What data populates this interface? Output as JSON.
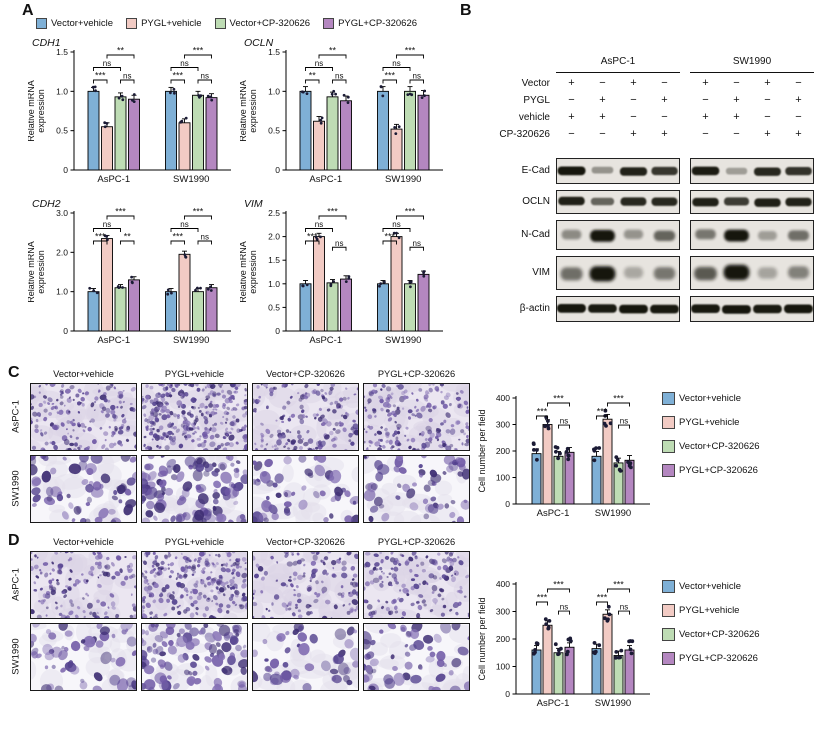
{
  "colors": {
    "series": [
      "#7fb0d6",
      "#f2cbc4",
      "#bedcb4",
      "#b487c0"
    ],
    "dot": "#1b1b35",
    "stain": "#5d4a96"
  },
  "legend_items": [
    "Vector+vehicle",
    "PYGL+vehicle",
    "Vector+CP-320626",
    "PYGL+CP-320626"
  ],
  "panelA": {
    "label": "A"
  },
  "panelB": {
    "label": "B",
    "cell_lines": [
      "AsPC-1",
      "SW1990"
    ],
    "condition_rows": [
      {
        "name": "Vector",
        "aspc1": [
          "+",
          "−",
          "+",
          "−"
        ],
        "sw1990": [
          "+",
          "−",
          "+",
          "−"
        ]
      },
      {
        "name": "PYGL",
        "aspc1": [
          "−",
          "+",
          "−",
          "+"
        ],
        "sw1990": [
          "−",
          "+",
          "−",
          "+"
        ]
      },
      {
        "name": "vehicle",
        "aspc1": [
          "+",
          "+",
          "−",
          "−"
        ],
        "sw1990": [
          "+",
          "+",
          "−",
          "−"
        ]
      },
      {
        "name": "CP-320626",
        "aspc1": [
          "−",
          "−",
          "+",
          "+"
        ],
        "sw1990": [
          "−",
          "−",
          "+",
          "+"
        ]
      }
    ],
    "blots": [
      {
        "name": "E-Cad",
        "aspc1": [
          0.95,
          0.3,
          0.88,
          0.78
        ],
        "sw1990": [
          0.92,
          0.25,
          0.85,
          0.8
        ]
      },
      {
        "name": "OCLN",
        "aspc1": [
          0.9,
          0.55,
          0.85,
          0.85
        ],
        "sw1990": [
          0.9,
          0.75,
          0.9,
          0.88
        ]
      },
      {
        "name": "N-Cad",
        "aspc1": [
          0.35,
          0.95,
          0.3,
          0.55
        ],
        "sw1990": [
          0.45,
          0.95,
          0.25,
          0.5
        ]
      },
      {
        "name": "VIM",
        "aspc1": [
          0.5,
          0.95,
          0.2,
          0.45
        ],
        "sw1990": [
          0.6,
          0.95,
          0.22,
          0.4
        ]
      },
      {
        "name": "β-actin",
        "aspc1": [
          0.95,
          0.93,
          0.95,
          0.94
        ],
        "sw1990": [
          0.94,
          0.95,
          0.93,
          0.95
        ]
      }
    ]
  },
  "panelC": {
    "label": "C",
    "col_headers": [
      "Vector+vehicle",
      "PYGL+vehicle",
      "Vector+CP-320626",
      "PYGL+CP-320626"
    ],
    "row_labels": [
      "AsPC-1",
      "SW1990"
    ],
    "image_density": [
      [
        170,
        300,
        160,
        175
      ],
      [
        62,
        110,
        52,
        58
      ]
    ]
  },
  "panelD": {
    "label": "D",
    "col_headers": [
      "Vector+vehicle",
      "PYGL+vehicle",
      "Vector+CP-320626",
      "PYGL+CP-320626"
    ],
    "row_labels": [
      "AsPC-1",
      "SW1990"
    ],
    "image_density": [
      [
        140,
        240,
        130,
        150
      ],
      [
        55,
        100,
        46,
        55
      ]
    ]
  },
  "chart_data": [
    {
      "id": "CDH1",
      "type": "bar",
      "style": "small",
      "seed": 3,
      "title": "CDH1",
      "ylabel": "Relative mRNA expression",
      "ylim": [
        0,
        1.5
      ],
      "yticks": [
        0,
        0.5,
        1,
        1.5
      ],
      "err": 0.05,
      "categories": [
        "AsPC-1",
        "SW1990"
      ],
      "series": [
        {
          "name": "Vector+vehicle",
          "values": [
            1.0,
            1.0
          ]
        },
        {
          "name": "PYGL+vehicle",
          "values": [
            0.55,
            0.6
          ]
        },
        {
          "name": "Vector+CP-320626",
          "values": [
            0.93,
            0.95
          ]
        },
        {
          "name": "PYGL+CP-320626",
          "values": [
            0.9,
            0.92
          ]
        }
      ],
      "brackets": [
        {
          "group": 0,
          "from": 0,
          "to": 1,
          "label": "***",
          "level": 2
        },
        {
          "group": 0,
          "from": 0,
          "to": 2,
          "label": "ns",
          "level": 1
        },
        {
          "group": 0,
          "from": 1,
          "to": 3,
          "label": "**",
          "level": 0
        },
        {
          "group": 0,
          "from": 2,
          "to": 3,
          "label": "ns",
          "level": 2
        },
        {
          "group": 1,
          "from": 0,
          "to": 1,
          "label": "***",
          "level": 2
        },
        {
          "group": 1,
          "from": 0,
          "to": 2,
          "label": "ns",
          "level": 1
        },
        {
          "group": 1,
          "from": 1,
          "to": 3,
          "label": "***",
          "level": 0
        },
        {
          "group": 1,
          "from": 2,
          "to": 3,
          "label": "ns",
          "level": 2
        }
      ]
    },
    {
      "id": "OCLN",
      "type": "bar",
      "style": "small",
      "seed": 5,
      "title": "OCLN",
      "ylabel": "Relative mRNA expression",
      "ylim": [
        0,
        1.5
      ],
      "yticks": [
        0,
        0.5,
        1,
        1.5
      ],
      "err": 0.06,
      "categories": [
        "AsPC-1",
        "SW1990"
      ],
      "series": [
        {
          "name": "Vector+vehicle",
          "values": [
            1.0,
            1.0
          ]
        },
        {
          "name": "PYGL+vehicle",
          "values": [
            0.62,
            0.52
          ]
        },
        {
          "name": "Vector+CP-320626",
          "values": [
            0.93,
            1.0
          ]
        },
        {
          "name": "PYGL+CP-320626",
          "values": [
            0.88,
            0.95
          ]
        }
      ],
      "brackets": [
        {
          "group": 0,
          "from": 0,
          "to": 1,
          "label": "**",
          "level": 2
        },
        {
          "group": 0,
          "from": 0,
          "to": 2,
          "label": "ns",
          "level": 1
        },
        {
          "group": 0,
          "from": 1,
          "to": 3,
          "label": "**",
          "level": 0
        },
        {
          "group": 0,
          "from": 2,
          "to": 3,
          "label": "ns",
          "level": 2
        },
        {
          "group": 1,
          "from": 0,
          "to": 1,
          "label": "***",
          "level": 2
        },
        {
          "group": 1,
          "from": 0,
          "to": 2,
          "label": "ns",
          "level": 1
        },
        {
          "group": 1,
          "from": 1,
          "to": 3,
          "label": "***",
          "level": 0
        },
        {
          "group": 1,
          "from": 2,
          "to": 3,
          "label": "ns",
          "level": 2
        }
      ]
    },
    {
      "id": "CDH2",
      "type": "bar",
      "style": "small",
      "seed": 7,
      "title": "CDH2",
      "ylabel": "Relative mRNA expression",
      "ylim": [
        0,
        3
      ],
      "yticks": [
        0,
        1,
        2,
        3
      ],
      "err": 0.08,
      "categories": [
        "AsPC-1",
        "SW1990"
      ],
      "series": [
        {
          "name": "Vector+vehicle",
          "values": [
            1.0,
            1.0
          ]
        },
        {
          "name": "PYGL+vehicle",
          "values": [
            2.35,
            1.95
          ]
        },
        {
          "name": "Vector+CP-320626",
          "values": [
            1.1,
            1.0
          ]
        },
        {
          "name": "PYGL+CP-320626",
          "values": [
            1.3,
            1.1
          ]
        }
      ],
      "brackets": [
        {
          "group": 0,
          "from": 0,
          "to": 1,
          "label": "***",
          "level": 2
        },
        {
          "group": 0,
          "from": 0,
          "to": 2,
          "label": "ns",
          "level": 1
        },
        {
          "group": 0,
          "from": 1,
          "to": 3,
          "label": "***",
          "level": 0
        },
        {
          "group": 0,
          "from": 2,
          "to": 3,
          "label": "**",
          "level": 2
        },
        {
          "group": 1,
          "from": 0,
          "to": 1,
          "label": "***",
          "level": 2
        },
        {
          "group": 1,
          "from": 0,
          "to": 2,
          "label": "ns",
          "level": 1
        },
        {
          "group": 1,
          "from": 1,
          "to": 3,
          "label": "***",
          "level": 0
        },
        {
          "group": 1,
          "from": 2,
          "to": 3,
          "label": "ns",
          "level": 2
        }
      ]
    },
    {
      "id": "VIM",
      "type": "bar",
      "style": "small",
      "seed": 9,
      "title": "VIM",
      "ylabel": "Relative mRNA expression",
      "ylim": [
        0,
        2.5
      ],
      "yticks": [
        0,
        0.5,
        1,
        1.5,
        2,
        2.5
      ],
      "err": 0.07,
      "categories": [
        "AsPC-1",
        "SW1990"
      ],
      "series": [
        {
          "name": "Vector+vehicle",
          "values": [
            1.0,
            1.0
          ]
        },
        {
          "name": "PYGL+vehicle",
          "values": [
            2.0,
            2.0
          ]
        },
        {
          "name": "Vector+CP-320626",
          "values": [
            1.02,
            1.0
          ]
        },
        {
          "name": "PYGL+CP-320626",
          "values": [
            1.1,
            1.2
          ]
        }
      ],
      "brackets": [
        {
          "group": 0,
          "from": 0,
          "to": 1,
          "label": "***",
          "level": 2
        },
        {
          "group": 0,
          "from": 0,
          "to": 2,
          "label": "ns",
          "level": 1
        },
        {
          "group": 0,
          "from": 1,
          "to": 3,
          "label": "***",
          "level": 0
        },
        {
          "group": 0,
          "from": 2,
          "to": 3,
          "label": "ns",
          "level": 2.5
        },
        {
          "group": 1,
          "from": 0,
          "to": 1,
          "label": "***",
          "level": 2
        },
        {
          "group": 1,
          "from": 0,
          "to": 2,
          "label": "ns",
          "level": 1
        },
        {
          "group": 1,
          "from": 1,
          "to": 3,
          "label": "***",
          "level": 0
        },
        {
          "group": 1,
          "from": 2,
          "to": 3,
          "label": "ns",
          "level": 2.5
        }
      ]
    },
    {
      "id": "migration",
      "type": "bar",
      "style": "large",
      "seed": 13,
      "title": "",
      "ylabel": "Cell number per field",
      "ylim": [
        0,
        400
      ],
      "yticks": [
        0,
        100,
        200,
        300,
        400
      ],
      "err": 18,
      "categories": [
        "AsPC-1",
        "SW1990"
      ],
      "series": [
        {
          "name": "Vector+vehicle",
          "values": [
            190,
            180
          ]
        },
        {
          "name": "PYGL+vehicle",
          "values": [
            300,
            320
          ]
        },
        {
          "name": "Vector+CP-320626",
          "values": [
            180,
            155
          ]
        },
        {
          "name": "PYGL+CP-320626",
          "values": [
            195,
            165
          ]
        }
      ],
      "brackets": [
        {
          "group": 0,
          "from": 0,
          "to": 1,
          "label": "***",
          "level": 1
        },
        {
          "group": 0,
          "from": 1,
          "to": 3,
          "label": "***",
          "level": 0
        },
        {
          "group": 0,
          "from": 2,
          "to": 3,
          "label": "ns",
          "level": 1.7
        },
        {
          "group": 1,
          "from": 0,
          "to": 1,
          "label": "***",
          "level": 1
        },
        {
          "group": 1,
          "from": 1,
          "to": 3,
          "label": "***",
          "level": 0
        },
        {
          "group": 1,
          "from": 2,
          "to": 3,
          "label": "ns",
          "level": 1.7
        }
      ]
    },
    {
      "id": "invasion",
      "type": "bar",
      "style": "large",
      "seed": 17,
      "title": "",
      "ylabel": "Cell number per field",
      "ylim": [
        0,
        400
      ],
      "yticks": [
        0,
        100,
        200,
        300,
        400
      ],
      "err": 16,
      "categories": [
        "AsPC-1",
        "SW1990"
      ],
      "series": [
        {
          "name": "Vector+vehicle",
          "values": [
            160,
            165
          ]
        },
        {
          "name": "PYGL+vehicle",
          "values": [
            250,
            290
          ]
        },
        {
          "name": "Vector+CP-320626",
          "values": [
            150,
            140
          ]
        },
        {
          "name": "PYGL+CP-320626",
          "values": [
            170,
            160
          ]
        }
      ],
      "brackets": [
        {
          "group": 0,
          "from": 0,
          "to": 1,
          "label": "***",
          "level": 1
        },
        {
          "group": 0,
          "from": 1,
          "to": 3,
          "label": "***",
          "level": 0
        },
        {
          "group": 0,
          "from": 2,
          "to": 3,
          "label": "ns",
          "level": 1.7
        },
        {
          "group": 1,
          "from": 0,
          "to": 1,
          "label": "***",
          "level": 1
        },
        {
          "group": 1,
          "from": 1,
          "to": 3,
          "label": "***",
          "level": 0
        },
        {
          "group": 1,
          "from": 2,
          "to": 3,
          "label": "ns",
          "level": 1.7
        }
      ]
    }
  ]
}
